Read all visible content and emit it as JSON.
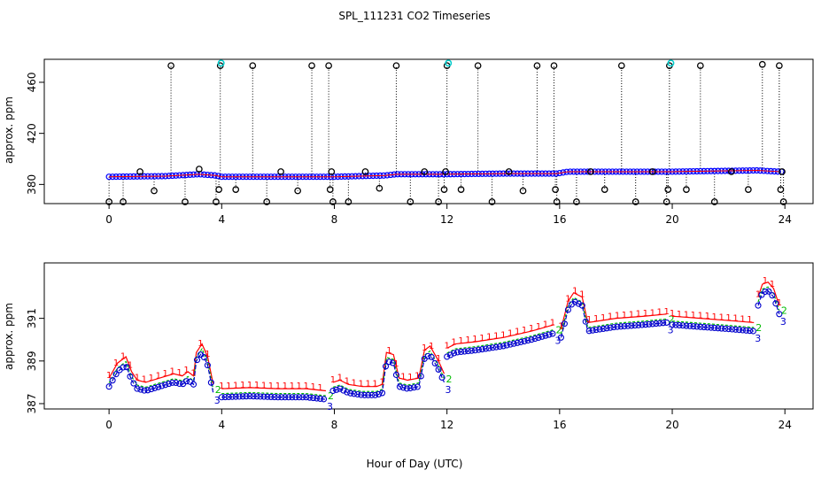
{
  "title": "SPL_111231  CO2 Timeseries",
  "xlabel": "Hour of Day (UTC)",
  "colors": {
    "axis": "#000000",
    "primary": "#0000ff",
    "series1": "#ff0000",
    "series2": "#00bb00",
    "series3": "#0000cc",
    "flag": "#00cccc"
  },
  "chart_data": [
    {
      "type": "scatter",
      "ylabel": "approx. ppm",
      "xlim": [
        -2.3,
        25
      ],
      "ylim": [
        365,
        478
      ],
      "xticks": [
        0,
        4,
        8,
        12,
        16,
        20,
        24
      ],
      "yticks": [
        380,
        420,
        460
      ],
      "baseline": {
        "x": [
          0,
          2,
          3.2,
          3.8,
          4,
          6,
          8,
          9.8,
          10.2,
          12,
          14,
          15.9,
          16.3,
          20,
          23,
          23.8
        ],
        "y": [
          386,
          386.5,
          388,
          387,
          386,
          386,
          386,
          387,
          388,
          388,
          388.5,
          388.5,
          390,
          390,
          391,
          390
        ]
      },
      "spikes": [
        {
          "x": 0,
          "y": 361
        },
        {
          "x": 0.5,
          "y": 364
        },
        {
          "x": 1.1,
          "y": 390
        },
        {
          "x": 1.6,
          "y": 375
        },
        {
          "x": 2.2,
          "y": 473
        },
        {
          "x": 2.7,
          "y": 364
        },
        {
          "x": 3.2,
          "y": 392
        },
        {
          "x": 3.8,
          "y": 364
        },
        {
          "x": 3.9,
          "y": 376
        },
        {
          "x": 3.95,
          "y": 473
        },
        {
          "x": 4.5,
          "y": 376
        },
        {
          "x": 5.1,
          "y": 473
        },
        {
          "x": 5.6,
          "y": 364
        },
        {
          "x": 6.1,
          "y": 390
        },
        {
          "x": 6.7,
          "y": 375
        },
        {
          "x": 7.2,
          "y": 473
        },
        {
          "x": 7.8,
          "y": 473
        },
        {
          "x": 7.85,
          "y": 376
        },
        {
          "x": 7.9,
          "y": 390
        },
        {
          "x": 7.95,
          "y": 364
        },
        {
          "x": 8.5,
          "y": 364
        },
        {
          "x": 9.1,
          "y": 390
        },
        {
          "x": 9.6,
          "y": 377
        },
        {
          "x": 10.2,
          "y": 473
        },
        {
          "x": 10.7,
          "y": 364
        },
        {
          "x": 11.2,
          "y": 390
        },
        {
          "x": 11.7,
          "y": 364
        },
        {
          "x": 11.9,
          "y": 376
        },
        {
          "x": 11.95,
          "y": 390
        },
        {
          "x": 12.0,
          "y": 473
        },
        {
          "x": 12.5,
          "y": 376
        },
        {
          "x": 13.1,
          "y": 473
        },
        {
          "x": 13.6,
          "y": 364
        },
        {
          "x": 14.2,
          "y": 390
        },
        {
          "x": 14.7,
          "y": 375
        },
        {
          "x": 15.2,
          "y": 473
        },
        {
          "x": 15.8,
          "y": 473
        },
        {
          "x": 15.85,
          "y": 376
        },
        {
          "x": 15.9,
          "y": 364
        },
        {
          "x": 16.6,
          "y": 365
        },
        {
          "x": 17.1,
          "y": 390
        },
        {
          "x": 17.6,
          "y": 376
        },
        {
          "x": 18.2,
          "y": 473
        },
        {
          "x": 18.7,
          "y": 364
        },
        {
          "x": 19.3,
          "y": 390
        },
        {
          "x": 19.8,
          "y": 364
        },
        {
          "x": 19.85,
          "y": 376
        },
        {
          "x": 19.9,
          "y": 473
        },
        {
          "x": 20.5,
          "y": 376
        },
        {
          "x": 21.0,
          "y": 473
        },
        {
          "x": 21.5,
          "y": 364
        },
        {
          "x": 22.1,
          "y": 390
        },
        {
          "x": 22.7,
          "y": 376
        },
        {
          "x": 23.2,
          "y": 474
        },
        {
          "x": 23.8,
          "y": 473
        },
        {
          "x": 23.85,
          "y": 376
        },
        {
          "x": 23.9,
          "y": 390
        },
        {
          "x": 23.95,
          "y": 364
        }
      ],
      "flagged": [
        {
          "x": 3.98,
          "y": 475
        },
        {
          "x": 12.05,
          "y": 475
        },
        {
          "x": 19.95,
          "y": 475
        }
      ]
    },
    {
      "type": "line",
      "ylabel": "approx. ppm",
      "xlim": [
        -2.3,
        25
      ],
      "ylim": [
        386.75,
        393.6
      ],
      "xticks": [
        0,
        4,
        8,
        12,
        16,
        20,
        24
      ],
      "yticks": [
        387,
        389,
        391
      ],
      "segments": [
        {
          "x": [
            0,
            0.3,
            0.6,
            0.8,
            1.0,
            1.3,
            1.8,
            2.3,
            2.6,
            2.8,
            3.0,
            3.1,
            3.3,
            3.5,
            3.7
          ],
          "y": [
            387.8,
            388.5,
            388.8,
            388.1,
            387.7,
            387.6,
            387.8,
            388.0,
            387.9,
            388.1,
            387.9,
            389.0,
            389.4,
            388.8,
            387.5
          ]
        },
        {
          "x": [
            4.0,
            5.0,
            6.0,
            7.0,
            7.7
          ],
          "y": [
            387.3,
            387.35,
            387.3,
            387.3,
            387.2
          ]
        },
        {
          "x": [
            7.95,
            8.2,
            8.5,
            9.0,
            9.5,
            9.7,
            9.85,
            10.1,
            10.3,
            10.6,
            11.0,
            11.2,
            11.4,
            11.7,
            11.9
          ],
          "y": [
            387.6,
            387.7,
            387.5,
            387.4,
            387.4,
            387.5,
            389.0,
            388.9,
            387.8,
            387.7,
            387.8,
            389.1,
            389.3,
            388.6,
            388.0
          ]
        },
        {
          "x": [
            12.0,
            12.3,
            13.0,
            14.0,
            15.0,
            15.8
          ],
          "y": [
            389.2,
            389.4,
            389.5,
            389.7,
            390.0,
            390.3
          ]
        },
        {
          "x": [
            16.05,
            16.3,
            16.5,
            16.8,
            17.0,
            18.0,
            19.0,
            19.8
          ],
          "y": [
            390.1,
            391.4,
            391.8,
            391.6,
            390.4,
            390.6,
            390.7,
            390.8
          ]
        },
        {
          "x": [
            20.0,
            21.0,
            22.0,
            22.9
          ],
          "y": [
            390.7,
            390.6,
            390.5,
            390.4
          ]
        },
        {
          "x": [
            23.05,
            23.2,
            23.4,
            23.6,
            23.8
          ],
          "y": [
            391.6,
            392.2,
            392.3,
            392.0,
            391.2
          ]
        }
      ],
      "series": [
        {
          "name": "1",
          "offset": 0.4
        },
        {
          "name": "2",
          "offset": 0.17
        },
        {
          "name": "3",
          "offset": 0.0
        }
      ]
    }
  ]
}
